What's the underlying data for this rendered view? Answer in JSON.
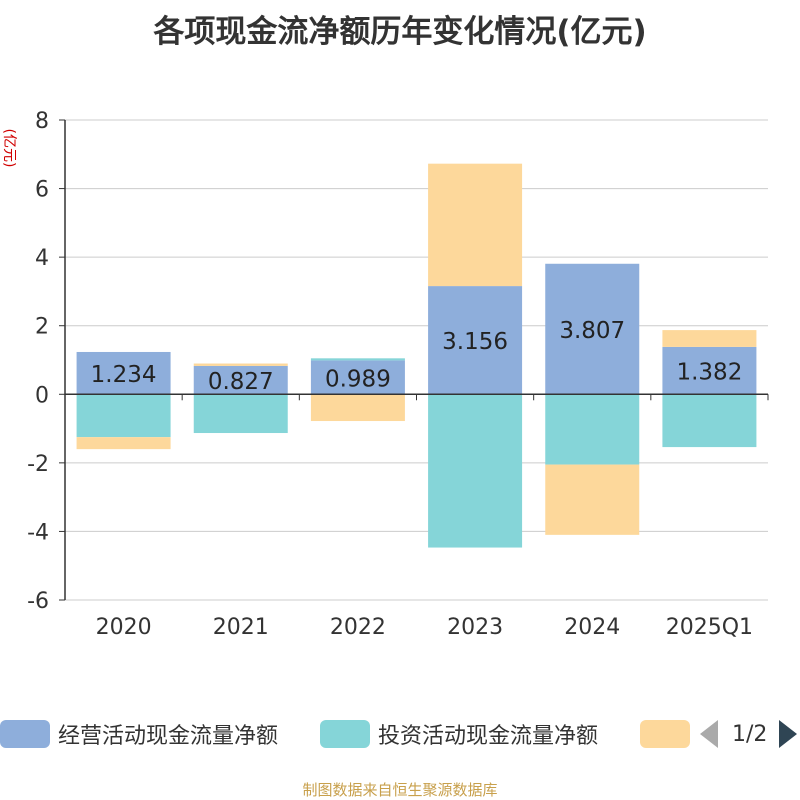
{
  "chart_data": {
    "type": "bar",
    "stacked": true,
    "title": "各项现金流净额历年变化情况(亿元)",
    "ylabel": "(亿元)",
    "ylim": [
      -6,
      8
    ],
    "yticks": [
      -6,
      -4,
      -2,
      0,
      2,
      4,
      6,
      8
    ],
    "grid": true,
    "categories": [
      "2020",
      "2021",
      "2022",
      "2023",
      "2024",
      "2025Q1"
    ],
    "series": [
      {
        "name": "经营活动现金流量净额",
        "color": "#8eaedb",
        "values": [
          1.234,
          0.827,
          0.989,
          3.156,
          3.807,
          1.382
        ],
        "show_labels": true
      },
      {
        "name": "投资活动现金流量净额",
        "color": "#85d5d8",
        "values": [
          -1.25,
          -1.13,
          0.06,
          -4.47,
          -2.05,
          -1.54
        ],
        "show_labels": false
      },
      {
        "name": "",
        "color": "#fdd89b",
        "values": [
          -0.35,
          0.07,
          -0.78,
          3.57,
          -2.05,
          0.49
        ],
        "show_labels": false
      }
    ],
    "legend_position": "bottom",
    "legend_page": "1/2",
    "source": "制图数据来自恒生聚源数据库"
  }
}
